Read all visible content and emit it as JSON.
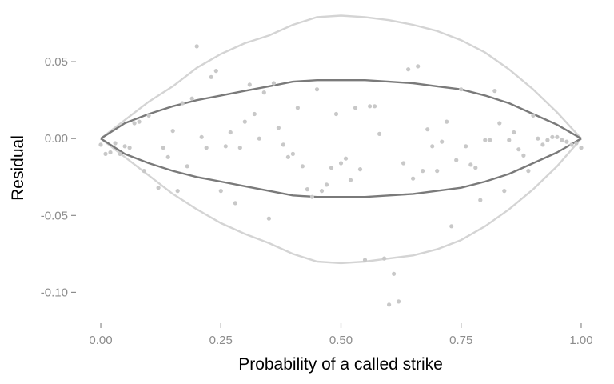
{
  "chart_data": {
    "type": "scatter",
    "title": "",
    "xlabel": "Probability of a called strike",
    "ylabel": "Residual",
    "xlim": [
      -0.03,
      1.03
    ],
    "ylim": [
      -0.118,
      0.087
    ],
    "x_ticks": [
      0,
      0.25,
      0.5,
      0.75,
      1
    ],
    "x_tick_labels": [
      "0.00",
      "0.25",
      "0.50",
      "0.75",
      "1.00"
    ],
    "y_ticks": [
      -0.1,
      -0.05,
      0,
      0.05
    ],
    "y_tick_labels": [
      "-0.10",
      "-0.05",
      "0.00",
      "0.05"
    ],
    "grid": false,
    "legend": "none",
    "point_color": "#c8c8c8",
    "inner_band_color": "#7a7a7a",
    "outer_band_color": "#d4d4d4",
    "points": [
      [
        0.0,
        -0.004
      ],
      [
        0.01,
        -0.01
      ],
      [
        0.02,
        -0.009
      ],
      [
        0.03,
        -0.003
      ],
      [
        0.04,
        -0.01
      ],
      [
        0.05,
        -0.005
      ],
      [
        0.06,
        -0.006
      ],
      [
        0.07,
        0.01
      ],
      [
        0.08,
        0.011
      ],
      [
        0.09,
        -0.021
      ],
      [
        0.1,
        0.015
      ],
      [
        0.12,
        -0.032
      ],
      [
        0.13,
        -0.006
      ],
      [
        0.14,
        -0.012
      ],
      [
        0.15,
        0.005
      ],
      [
        0.16,
        -0.034
      ],
      [
        0.17,
        0.023
      ],
      [
        0.18,
        -0.018
      ],
      [
        0.19,
        0.026
      ],
      [
        0.2,
        0.06
      ],
      [
        0.21,
        0.001
      ],
      [
        0.22,
        -0.006
      ],
      [
        0.23,
        0.04
      ],
      [
        0.24,
        0.044
      ],
      [
        0.25,
        -0.034
      ],
      [
        0.26,
        -0.005
      ],
      [
        0.27,
        0.004
      ],
      [
        0.28,
        -0.042
      ],
      [
        0.29,
        -0.006
      ],
      [
        0.3,
        0.011
      ],
      [
        0.31,
        0.035
      ],
      [
        0.32,
        0.016
      ],
      [
        0.33,
        0.0
      ],
      [
        0.34,
        0.03
      ],
      [
        0.35,
        -0.052
      ],
      [
        0.36,
        0.036
      ],
      [
        0.37,
        0.007
      ],
      [
        0.38,
        -0.004
      ],
      [
        0.39,
        -0.012
      ],
      [
        0.4,
        -0.01
      ],
      [
        0.41,
        0.02
      ],
      [
        0.42,
        -0.018
      ],
      [
        0.43,
        -0.033
      ],
      [
        0.44,
        -0.038
      ],
      [
        0.45,
        0.032
      ],
      [
        0.46,
        -0.034
      ],
      [
        0.47,
        -0.03
      ],
      [
        0.48,
        -0.019
      ],
      [
        0.49,
        0.016
      ],
      [
        0.5,
        -0.016
      ],
      [
        0.51,
        -0.013
      ],
      [
        0.52,
        -0.027
      ],
      [
        0.53,
        0.02
      ],
      [
        0.54,
        -0.02
      ],
      [
        0.55,
        -0.079
      ],
      [
        0.56,
        0.021
      ],
      [
        0.57,
        0.021
      ],
      [
        0.58,
        0.003
      ],
      [
        0.59,
        -0.078
      ],
      [
        0.6,
        -0.108
      ],
      [
        0.61,
        -0.088
      ],
      [
        0.62,
        -0.106
      ],
      [
        0.63,
        -0.016
      ],
      [
        0.64,
        0.045
      ],
      [
        0.65,
        -0.026
      ],
      [
        0.66,
        0.047
      ],
      [
        0.67,
        -0.021
      ],
      [
        0.68,
        0.006
      ],
      [
        0.69,
        -0.005
      ],
      [
        0.7,
        -0.021
      ],
      [
        0.71,
        -0.002
      ],
      [
        0.72,
        0.011
      ],
      [
        0.73,
        -0.057
      ],
      [
        0.74,
        -0.014
      ],
      [
        0.75,
        0.032
      ],
      [
        0.76,
        -0.005
      ],
      [
        0.77,
        -0.017
      ],
      [
        0.78,
        -0.019
      ],
      [
        0.79,
        -0.04
      ],
      [
        0.8,
        -0.001
      ],
      [
        0.81,
        -0.001
      ],
      [
        0.82,
        0.031
      ],
      [
        0.83,
        0.01
      ],
      [
        0.84,
        -0.034
      ],
      [
        0.85,
        -0.001
      ],
      [
        0.86,
        0.004
      ],
      [
        0.87,
        -0.007
      ],
      [
        0.88,
        -0.011
      ],
      [
        0.89,
        -0.021
      ],
      [
        0.9,
        0.015
      ],
      [
        0.91,
        0.0
      ],
      [
        0.92,
        -0.004
      ],
      [
        0.93,
        -0.001
      ],
      [
        0.94,
        0.001
      ],
      [
        0.95,
        0.001
      ],
      [
        0.96,
        -0.001
      ],
      [
        0.97,
        -0.002
      ],
      [
        0.98,
        -0.004
      ],
      [
        0.99,
        -0.003
      ],
      [
        1.0,
        -0.006
      ]
    ],
    "inner_band": {
      "x": [
        0,
        0.05,
        0.1,
        0.15,
        0.2,
        0.25,
        0.3,
        0.35,
        0.4,
        0.45,
        0.5,
        0.55,
        0.6,
        0.65,
        0.7,
        0.75,
        0.8,
        0.85,
        0.9,
        0.95,
        1
      ],
      "upper": [
        0,
        0.01,
        0.016,
        0.021,
        0.025,
        0.028,
        0.031,
        0.034,
        0.037,
        0.038,
        0.038,
        0.038,
        0.037,
        0.036,
        0.034,
        0.032,
        0.028,
        0.023,
        0.016,
        0.009,
        0
      ],
      "lower": [
        0,
        -0.01,
        -0.016,
        -0.021,
        -0.025,
        -0.028,
        -0.031,
        -0.034,
        -0.037,
        -0.038,
        -0.038,
        -0.038,
        -0.037,
        -0.036,
        -0.034,
        -0.032,
        -0.028,
        -0.023,
        -0.016,
        -0.009,
        0
      ]
    },
    "outer_band": {
      "x": [
        0,
        0.05,
        0.1,
        0.15,
        0.2,
        0.25,
        0.3,
        0.35,
        0.4,
        0.45,
        0.5,
        0.55,
        0.6,
        0.65,
        0.7,
        0.75,
        0.8,
        0.85,
        0.9,
        0.95,
        1
      ],
      "upper": [
        0,
        0.012,
        0.024,
        0.034,
        0.046,
        0.055,
        0.062,
        0.067,
        0.074,
        0.079,
        0.08,
        0.079,
        0.077,
        0.074,
        0.07,
        0.064,
        0.056,
        0.045,
        0.032,
        0.017,
        0
      ],
      "lower": [
        0,
        -0.012,
        -0.024,
        -0.036,
        -0.046,
        -0.055,
        -0.062,
        -0.068,
        -0.075,
        -0.08,
        -0.081,
        -0.08,
        -0.078,
        -0.076,
        -0.072,
        -0.066,
        -0.057,
        -0.046,
        -0.033,
        -0.018,
        0
      ]
    }
  }
}
